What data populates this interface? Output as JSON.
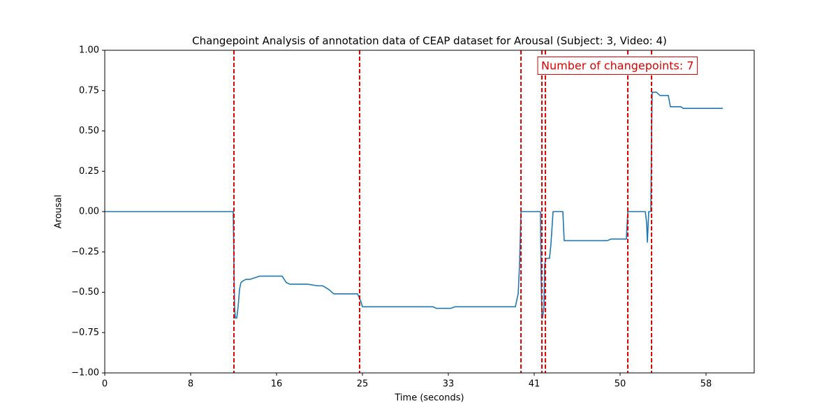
{
  "chart_data": {
    "type": "line",
    "title": "Changepoint Analysis of annotation data of CEAP dataset for Arousal (Subject: 3, Video: 4)",
    "x_label": "Time (seconds)",
    "y_label": "Arousal",
    "annotation": "Number of changepoints: 7",
    "xlim": [
      0,
      62.38
    ],
    "ylim": [
      -1,
      1
    ],
    "xticks": [
      0,
      {
        "value": 8.25,
        "label": "8"
      },
      {
        "value": 16.5,
        "label": "16"
      },
      {
        "value": 24.75,
        "label": "25"
      },
      33,
      {
        "value": 41.25,
        "label": "41"
      },
      {
        "value": 49.5,
        "label": "50"
      },
      {
        "value": 57.75,
        "label": "58"
      }
    ],
    "yticks": [
      {
        "value": -1,
        "label": "−1.00"
      },
      {
        "value": -0.75,
        "label": "−0.75"
      },
      {
        "value": -0.5,
        "label": "−0.50"
      },
      {
        "value": -0.25,
        "label": "−0.25"
      },
      {
        "value": 0,
        "label": "0.00"
      },
      {
        "value": 0.25,
        "label": "0.25"
      },
      {
        "value": 0.5,
        "label": "0.50"
      },
      {
        "value": 0.75,
        "label": "0.75"
      },
      {
        "value": 1,
        "label": "1.00"
      }
    ],
    "grid": false,
    "changepoint_color": "#e00000",
    "changepoints": [
      12.41,
      24.48,
      39.98,
      41.99,
      42.32,
      50.24,
      52.52
    ],
    "series": [
      {
        "color": "#1f77b4",
        "x": [
          0,
          12.34,
          12.47,
          12.54,
          12.68,
          12.81,
          12.95,
          13.08,
          13.28,
          13.55,
          13.95,
          14.42,
          14.89,
          17.04,
          17.44,
          17.77,
          19.45,
          20.46,
          20.93,
          21.46,
          22.0,
          24.28,
          24.62,
          24.75,
          31.52,
          31.86,
          33.2,
          33.67,
          39.44,
          39.57,
          39.71,
          39.84,
          39.98,
          41.85,
          41.92,
          41.99,
          42.05,
          42.19,
          42.25,
          42.39,
          42.72,
          42.86,
          43.06,
          44.0,
          44.13,
          48.29,
          48.63,
          50.1,
          50.24,
          51.92,
          52.05,
          52.12,
          52.25,
          52.45,
          52.52,
          52.58,
          52.99,
          53.32,
          54.13,
          54.33,
          55.34,
          55.54,
          56.01,
          56.21,
          59.36
        ],
        "values": [
          0,
          0,
          -0.59,
          -0.66,
          -0.66,
          -0.59,
          -0.48,
          -0.44,
          -0.43,
          -0.42,
          -0.42,
          -0.41,
          -0.4,
          -0.4,
          -0.44,
          -0.45,
          -0.45,
          -0.46,
          -0.46,
          -0.48,
          -0.51,
          -0.51,
          -0.56,
          -0.59,
          -0.59,
          -0.6,
          -0.6,
          -0.59,
          -0.59,
          -0.55,
          -0.51,
          -0.33,
          0,
          0,
          -0.42,
          -0.64,
          -0.66,
          -0.59,
          -0.33,
          -0.29,
          -0.29,
          -0.2,
          0,
          0,
          -0.18,
          -0.18,
          -0.17,
          -0.17,
          0,
          0,
          -0.07,
          -0.19,
          0,
          0,
          0.45,
          0.74,
          0.74,
          0.72,
          0.72,
          0.65,
          0.65,
          0.64,
          0.64,
          0.64,
          0.64
        ]
      }
    ]
  }
}
